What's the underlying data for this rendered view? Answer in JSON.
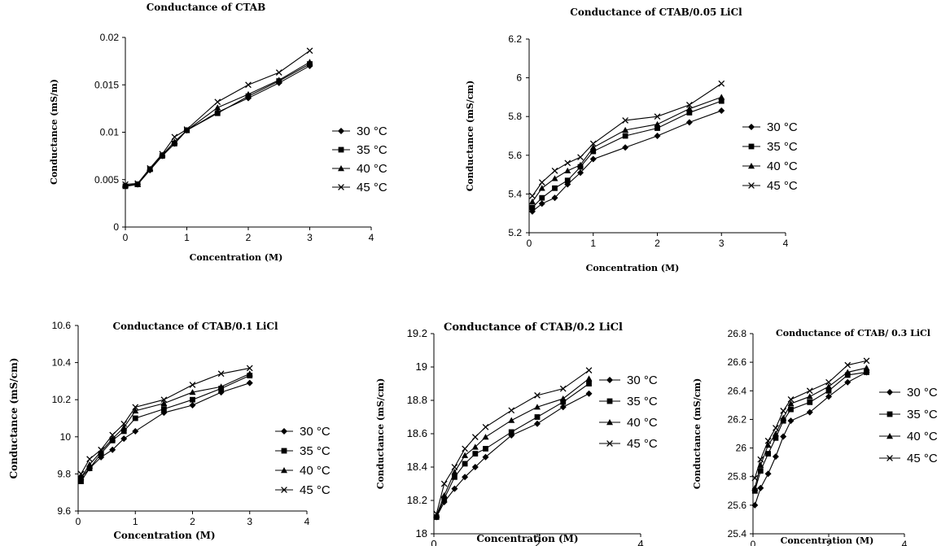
{
  "chart_data": [
    {
      "type": "line",
      "title": "Conductance of CTAB",
      "xlabel": "Concentration (M)",
      "ylabel": "Conductance (mS/m)",
      "xlim": [
        0,
        4
      ],
      "ylim": [
        0,
        0.02
      ],
      "xticks": [
        "0",
        "1",
        "2",
        "3",
        "4"
      ],
      "yticks": [
        "0",
        "0.005",
        "0.01",
        "0.015",
        "0.02"
      ],
      "grid": false,
      "legend": "right",
      "x": [
        0,
        0.2,
        0.4,
        0.6,
        0.8,
        1,
        1.5,
        2,
        2.5,
        3
      ],
      "series": [
        {
          "name": "30 °C",
          "marker": "diamond",
          "values": [
            0.0043,
            0.0045,
            0.006,
            0.0075,
            0.0088,
            0.0102,
            0.0121,
            0.0136,
            0.0152,
            0.017
          ]
        },
        {
          "name": "35 °C",
          "marker": "square",
          "values": [
            0.0043,
            0.0045,
            0.0061,
            0.0075,
            0.0088,
            0.0102,
            0.012,
            0.0138,
            0.0154,
            0.0172
          ]
        },
        {
          "name": "40 °C",
          "marker": "triangle",
          "values": [
            0.0044,
            0.0045,
            0.0061,
            0.0076,
            0.009,
            0.0102,
            0.0126,
            0.014,
            0.0155,
            0.0174
          ]
        },
        {
          "name": "45 °C",
          "marker": "x",
          "values": [
            0.0045,
            0.0046,
            0.0062,
            0.0077,
            0.0095,
            0.0103,
            0.0132,
            0.015,
            0.0163,
            0.0186
          ]
        }
      ]
    },
    {
      "type": "line",
      "title": "Conductance of CTAB/0.05 LiCl",
      "xlabel": "Concentration (M)",
      "ylabel": "Conductance (mS/cm)",
      "xlim": [
        0,
        4
      ],
      "ylim": [
        5.2,
        6.2
      ],
      "xticks": [
        "0",
        "1",
        "2",
        "3",
        "4"
      ],
      "yticks": [
        "5.2",
        "5.4",
        "5.6",
        "5.8",
        "6",
        "6.2"
      ],
      "grid": false,
      "legend": "right",
      "x": [
        0.05,
        0.2,
        0.4,
        0.6,
        0.8,
        1,
        1.5,
        2,
        2.5,
        3
      ],
      "series": [
        {
          "name": "30 °C",
          "marker": "diamond",
          "values": [
            5.31,
            5.35,
            5.38,
            5.45,
            5.51,
            5.58,
            5.64,
            5.7,
            5.77,
            5.83
          ]
        },
        {
          "name": "35 °C",
          "marker": "square",
          "values": [
            5.33,
            5.38,
            5.43,
            5.47,
            5.54,
            5.62,
            5.7,
            5.74,
            5.82,
            5.88
          ]
        },
        {
          "name": "40 °C",
          "marker": "triangle",
          "values": [
            5.36,
            5.43,
            5.48,
            5.52,
            5.55,
            5.64,
            5.73,
            5.76,
            5.84,
            5.9
          ]
        },
        {
          "name": "45 °C",
          "marker": "x",
          "values": [
            5.39,
            5.46,
            5.52,
            5.56,
            5.59,
            5.66,
            5.78,
            5.8,
            5.86,
            5.97
          ]
        }
      ]
    },
    {
      "type": "line",
      "title": "Conductance of CTAB/0.1 LiCl",
      "xlabel": "Concentration (M)",
      "ylabel": "Conductance (mS/cm)",
      "xlim": [
        0,
        4
      ],
      "ylim": [
        9.6,
        10.6
      ],
      "xticks": [
        "0",
        "1",
        "2",
        "3",
        "4"
      ],
      "yticks": [
        "9.6",
        "9.8",
        "10",
        "10.2",
        "10.4",
        "10.6"
      ],
      "grid": false,
      "legend": "right",
      "x": [
        0.05,
        0.2,
        0.4,
        0.6,
        0.8,
        1,
        1.5,
        2,
        2.5,
        3
      ],
      "series": [
        {
          "name": "30 °C",
          "marker": "diamond",
          "values": [
            9.78,
            9.83,
            9.89,
            9.93,
            9.99,
            10.03,
            10.13,
            10.17,
            10.24,
            10.29
          ]
        },
        {
          "name": "35 °C",
          "marker": "square",
          "values": [
            9.76,
            9.83,
            9.91,
            9.98,
            10.03,
            10.1,
            10.15,
            10.2,
            10.26,
            10.33
          ]
        },
        {
          "name": "40 °C",
          "marker": "triangle",
          "values": [
            9.78,
            9.85,
            9.92,
            9.99,
            10.05,
            10.14,
            10.18,
            10.24,
            10.27,
            10.34
          ]
        },
        {
          "name": "45 °C",
          "marker": "x",
          "values": [
            9.8,
            9.88,
            9.93,
            10.01,
            10.07,
            10.16,
            10.2,
            10.28,
            10.34,
            10.37
          ]
        }
      ]
    },
    {
      "type": "line",
      "title": "Conductance of CTAB/0.2 LiCl",
      "xlabel": "Concentration (M)",
      "ylabel": "Conductance (mS/cm)",
      "xlim": [
        0,
        4
      ],
      "ylim": [
        18,
        19.2
      ],
      "xticks": [
        "0",
        "2",
        "4"
      ],
      "yticks": [
        "18",
        "18.2",
        "18.4",
        "18.6",
        "18.8",
        "19",
        "19.2"
      ],
      "grid": false,
      "legend": "right",
      "x": [
        0.05,
        0.2,
        0.4,
        0.6,
        0.8,
        1,
        1.5,
        2,
        2.5,
        3
      ],
      "series": [
        {
          "name": "30 °C",
          "marker": "diamond",
          "values": [
            18.1,
            18.19,
            18.27,
            18.34,
            18.4,
            18.46,
            18.59,
            18.66,
            18.76,
            18.84
          ]
        },
        {
          "name": "35 °C",
          "marker": "square",
          "values": [
            18.1,
            18.21,
            18.34,
            18.42,
            18.48,
            18.51,
            18.61,
            18.7,
            18.79,
            18.9
          ]
        },
        {
          "name": "40 °C",
          "marker": "triangle",
          "values": [
            18.11,
            18.23,
            18.37,
            18.47,
            18.52,
            18.58,
            18.68,
            18.76,
            18.81,
            18.93
          ]
        },
        {
          "name": "45 °C",
          "marker": "x",
          "values": [
            18.12,
            18.3,
            18.4,
            18.51,
            18.58,
            18.64,
            18.74,
            18.83,
            18.87,
            18.98
          ]
        }
      ]
    },
    {
      "type": "line",
      "title": "Conductance of CTAB/ 0.3 LiCl",
      "xlabel": "Concentration (M)",
      "ylabel": "Conductance (mS/cm)",
      "xlim": [
        0,
        4
      ],
      "ylim": [
        25.4,
        26.8
      ],
      "xticks": [
        "0",
        "2",
        "4"
      ],
      "yticks": [
        "25.4",
        "25.6",
        "25.8",
        "26",
        "26.2",
        "26.4",
        "26.6",
        "26.8"
      ],
      "grid": false,
      "legend": "right",
      "x": [
        0.05,
        0.2,
        0.4,
        0.6,
        0.8,
        1,
        1.5,
        2,
        2.5,
        3
      ],
      "series": [
        {
          "name": "30 °C",
          "marker": "diamond",
          "values": [
            25.6,
            25.72,
            25.82,
            25.94,
            26.08,
            26.19,
            26.25,
            26.36,
            26.46,
            26.53
          ]
        },
        {
          "name": "35 °C",
          "marker": "square",
          "values": [
            25.7,
            25.84,
            25.96,
            26.07,
            26.19,
            26.27,
            26.32,
            26.4,
            26.51,
            26.53
          ]
        },
        {
          "name": "40 °C",
          "marker": "triangle",
          "values": [
            25.72,
            25.88,
            26.02,
            26.1,
            26.21,
            26.31,
            26.36,
            26.43,
            26.53,
            26.56
          ]
        },
        {
          "name": "45 °C",
          "marker": "x",
          "values": [
            25.79,
            25.92,
            26.05,
            26.14,
            26.26,
            26.34,
            26.4,
            26.46,
            26.58,
            26.61
          ]
        }
      ]
    }
  ]
}
